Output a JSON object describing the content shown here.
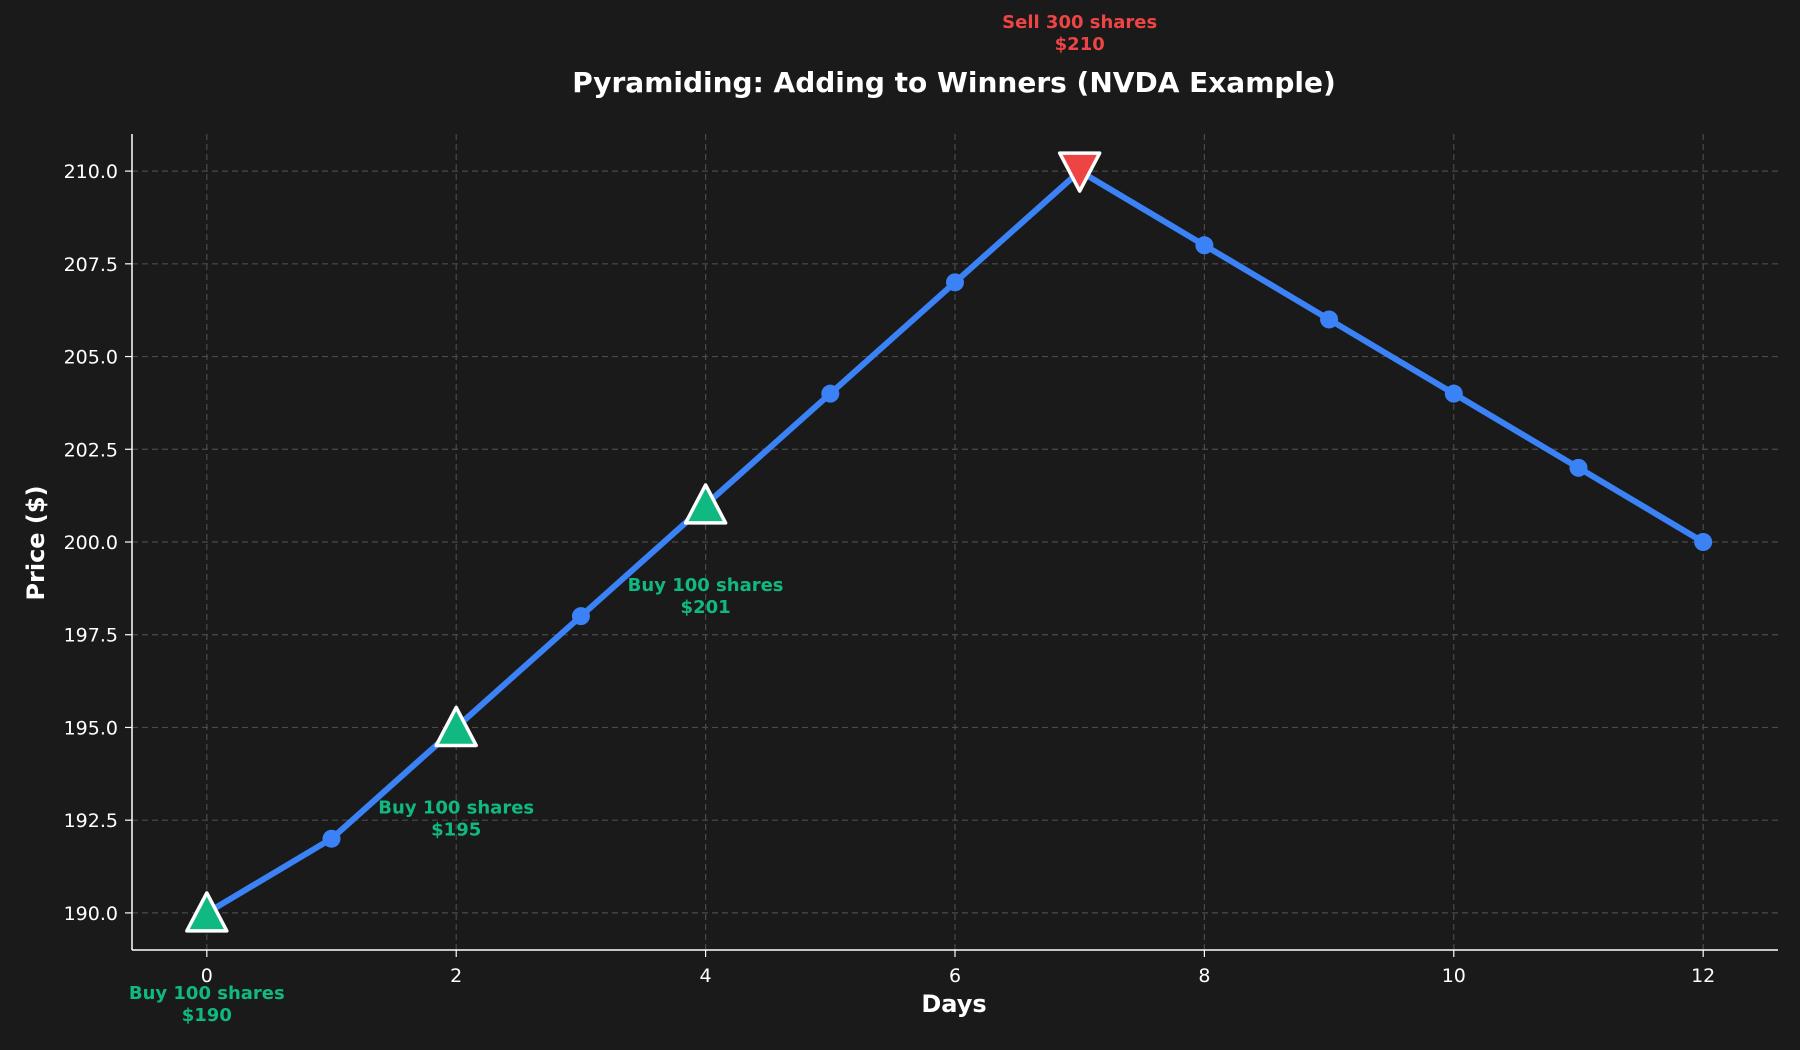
{
  "chart_data": {
    "type": "line",
    "title": "Pyramiding: Adding to Winners (NVDA Example)",
    "xlabel": "Days",
    "ylabel": "Price ($)",
    "xlim": [
      -0.6,
      12.6
    ],
    "ylim": [
      189,
      211
    ],
    "xticks": [
      0,
      2,
      4,
      6,
      8,
      10,
      12
    ],
    "yticks": [
      190.0,
      192.5,
      195.0,
      197.5,
      200.0,
      202.5,
      205.0,
      207.5,
      210.0
    ],
    "ytick_labels": [
      "190.0",
      "192.5",
      "195.0",
      "197.5",
      "200.0",
      "202.5",
      "205.0",
      "207.5",
      "210.0"
    ],
    "grid": true,
    "series": [
      {
        "x": [
          0,
          1,
          2,
          3,
          4,
          5,
          6,
          7,
          8,
          9,
          10,
          11,
          12
        ],
        "values": [
          190,
          192,
          195,
          198,
          201,
          204,
          207,
          210,
          208,
          206,
          204,
          202,
          200
        ],
        "color": "#3b82f6"
      }
    ],
    "markers": [
      {
        "type": "buy",
        "x": 0,
        "y": 190,
        "color": "#10b981"
      },
      {
        "type": "buy",
        "x": 2,
        "y": 195,
        "color": "#10b981"
      },
      {
        "type": "buy",
        "x": 4,
        "y": 201,
        "color": "#10b981"
      },
      {
        "type": "sell",
        "x": 7,
        "y": 210,
        "color": "#ef4444"
      }
    ],
    "annotations": [
      {
        "line1": "Buy 100 shares",
        "line2": "$190",
        "x": 0,
        "y": 190,
        "placement": "below",
        "color": "#10b981"
      },
      {
        "line1": "Buy 100 shares",
        "line2": "$195",
        "x": 2,
        "y": 195,
        "placement": "below",
        "color": "#10b981"
      },
      {
        "line1": "Buy 100 shares",
        "line2": "$201",
        "x": 4,
        "y": 201,
        "placement": "below",
        "color": "#10b981"
      },
      {
        "line1": "Sell 300 shares",
        "line2": "$210",
        "x": 7,
        "y": 210,
        "placement": "above",
        "color": "#ef4444"
      }
    ]
  }
}
